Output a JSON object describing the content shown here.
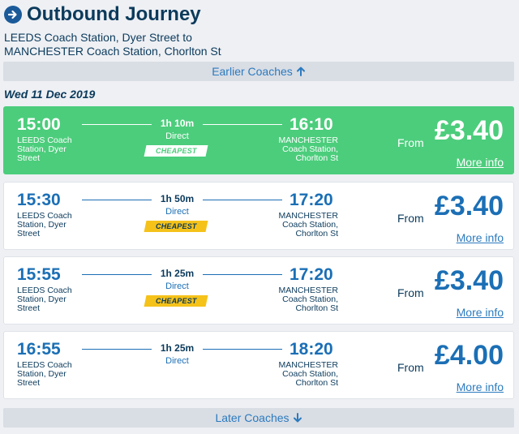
{
  "header": {
    "title": "Outbound Journey",
    "route_line1": "LEEDS Coach Station, Dyer Street to",
    "route_line2": "MANCHESTER Coach Station, Chorlton St"
  },
  "earlier_label": "Earlier Coaches",
  "later_label": "Later Coaches",
  "date": "Wed 11 Dec 2019",
  "journeys": [
    {
      "depart": "15:00",
      "arrive": "16:10",
      "duration": "1h 10m",
      "type": "Direct",
      "badge": "CHEAPEST",
      "badge_style": "white",
      "from_station": "LEEDS Coach Station, Dyer Street",
      "to_station": "MANCHESTER Coach Station, Chorlton St",
      "from_label": "From",
      "price": "£3.40",
      "more": "More info",
      "selected": true
    },
    {
      "depart": "15:30",
      "arrive": "17:20",
      "duration": "1h 50m",
      "type": "Direct",
      "badge": "CHEAPEST",
      "badge_style": "yellow",
      "from_station": "LEEDS Coach Station, Dyer Street",
      "to_station": "MANCHESTER Coach Station, Chorlton St",
      "from_label": "From",
      "price": "£3.40",
      "more": "More info",
      "selected": false
    },
    {
      "depart": "15:55",
      "arrive": "17:20",
      "duration": "1h 25m",
      "type": "Direct",
      "badge": "CHEAPEST",
      "badge_style": "yellow",
      "from_station": "LEEDS Coach Station, Dyer Street",
      "to_station": "MANCHESTER Coach Station, Chorlton St",
      "from_label": "From",
      "price": "£3.40",
      "more": "More info",
      "selected": false
    },
    {
      "depart": "16:55",
      "arrive": "18:20",
      "duration": "1h 25m",
      "type": "Direct",
      "badge": "",
      "badge_style": "",
      "from_station": "LEEDS Coach Station, Dyer Street",
      "to_station": "MANCHESTER Coach Station, Chorlton St",
      "from_label": "From",
      "price": "£4.00",
      "more": "More info",
      "selected": false
    }
  ],
  "colors": {
    "selected": "#4ccd7c",
    "accent": "#1b6fb5",
    "cheapest": "#f5c21a"
  }
}
